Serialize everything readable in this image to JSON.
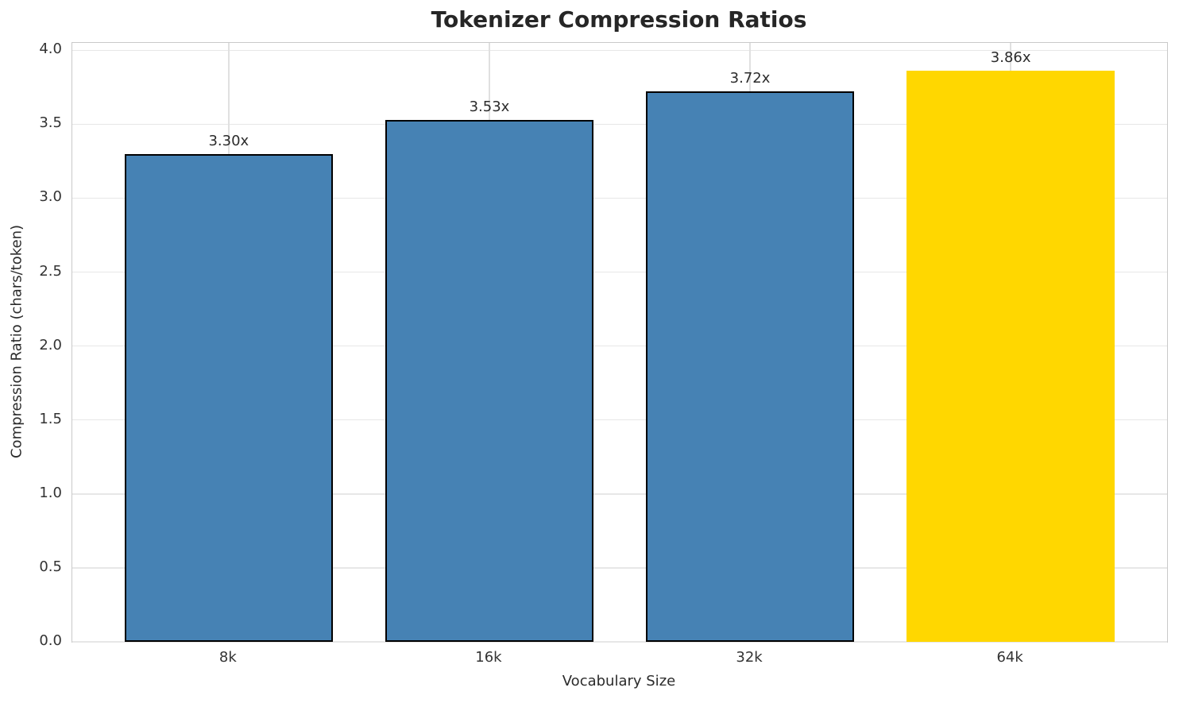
{
  "chart_data": {
    "type": "bar",
    "title": "Tokenizer Compression Ratios",
    "xlabel": "Vocabulary Size",
    "ylabel": "Compression Ratio (chars/token)",
    "categories": [
      "8k",
      "16k",
      "32k",
      "64k"
    ],
    "values": [
      3.3,
      3.53,
      3.72,
      3.86
    ],
    "value_labels": [
      "3.30x",
      "3.53x",
      "3.72x",
      "3.86x"
    ],
    "series": [
      {
        "name": "Compression Ratio",
        "values": [
          3.3,
          3.53,
          3.72,
          3.86
        ]
      }
    ],
    "bar_face_colors": [
      "#4682b4",
      "#4682b4",
      "#4682b4",
      "#ffd700"
    ],
    "bar_edge_colors": [
      "#000000",
      "#000000",
      "#000000",
      "#ffd700"
    ],
    "highlight_index": 3,
    "ytick_labels": [
      "0.0",
      "0.5",
      "1.0",
      "1.5",
      "2.0",
      "2.5",
      "3.0",
      "3.5",
      "4.0"
    ],
    "ytick_values": [
      0,
      0.5,
      1.0,
      1.5,
      2.0,
      2.5,
      3.0,
      3.5,
      4.0
    ],
    "ylim": [
      0,
      4.05
    ],
    "grid": true,
    "legend_position": "none",
    "colors": {
      "grid": "#e7e7e7",
      "spine": "#c9c9c9",
      "tick_text": "#333333",
      "title_text": "#262626",
      "background": "#ffffff",
      "bar_default": "#4682b4",
      "bar_highlight": "#ffd700"
    }
  }
}
